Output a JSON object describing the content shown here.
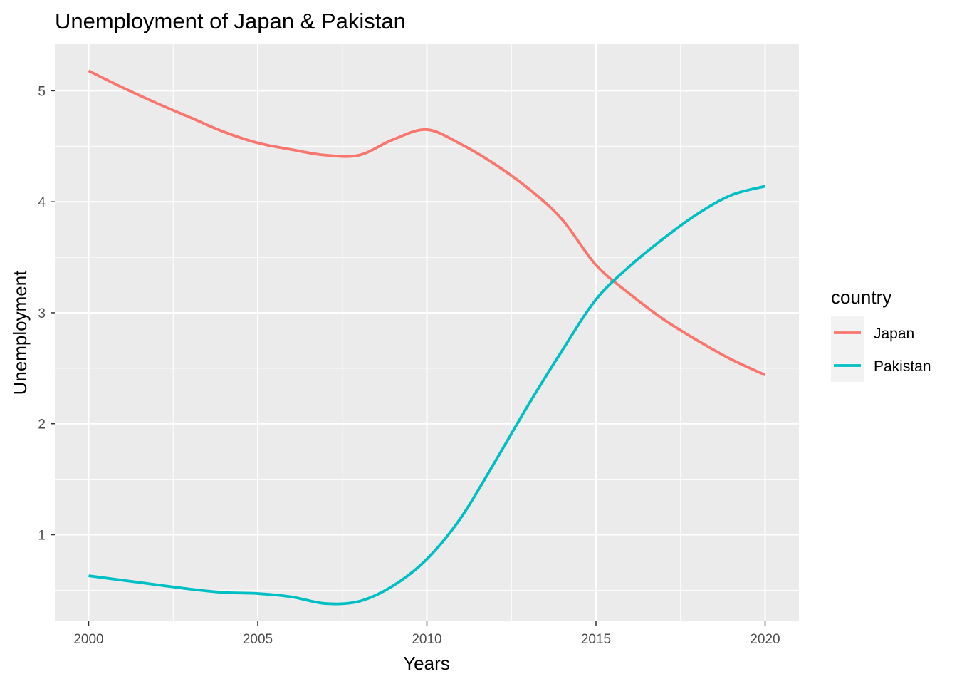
{
  "chart_data": {
    "type": "line",
    "title": "Unemployment of Japan & Pakistan",
    "xlabel": "Years",
    "ylabel": "Unemployment",
    "xlim": [
      1999.0,
      2021.0
    ],
    "ylim": [
      0.22,
      5.42
    ],
    "x_ticks": [
      2000,
      2005,
      2010,
      2015,
      2020
    ],
    "y_ticks": [
      1,
      2,
      3,
      4,
      5
    ],
    "grid": true,
    "legend": {
      "title": "country",
      "placement": "right"
    },
    "series": [
      {
        "name": "Japan",
        "color": "#F8766D",
        "x": [
          2000,
          2001,
          2002,
          2003,
          2004,
          2005,
          2006,
          2007,
          2008,
          2009,
          2010,
          2011,
          2012,
          2013,
          2014,
          2015,
          2016,
          2017,
          2018,
          2019,
          2020
        ],
        "values": [
          5.18,
          5.03,
          4.89,
          4.76,
          4.63,
          4.53,
          4.47,
          4.42,
          4.42,
          4.56,
          4.65,
          4.52,
          4.34,
          4.12,
          3.84,
          3.43,
          3.17,
          2.94,
          2.75,
          2.58,
          2.44
        ]
      },
      {
        "name": "Pakistan",
        "color": "#00BFC4",
        "x": [
          2000,
          2001,
          2002,
          2003,
          2004,
          2005,
          2006,
          2007,
          2008,
          2009,
          2010,
          2011,
          2012,
          2013,
          2014,
          2015,
          2016,
          2017,
          2018,
          2019,
          2020
        ],
        "values": [
          0.63,
          0.59,
          0.55,
          0.51,
          0.48,
          0.47,
          0.44,
          0.38,
          0.4,
          0.54,
          0.78,
          1.15,
          1.65,
          2.17,
          2.66,
          3.12,
          3.42,
          3.67,
          3.89,
          4.06,
          4.14
        ]
      }
    ]
  }
}
